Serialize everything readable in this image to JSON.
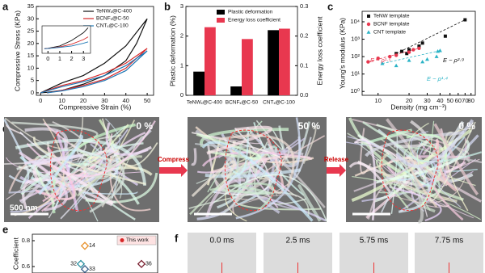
{
  "chart_data": [
    {
      "type": "line",
      "label": "a",
      "x_label": "Compressive Strain (%)",
      "y_label": "Compressive Stress (KPa)",
      "xlim": [
        -2,
        53
      ],
      "xticks": [
        0,
        10,
        20,
        30,
        40,
        50
      ],
      "ylim": [
        -1,
        35
      ],
      "yticks": [
        0,
        5,
        10,
        15,
        20,
        25,
        30,
        35
      ],
      "series": [
        {
          "name": "TeNWₓ@C-400",
          "color": "#111111",
          "x": [
            0,
            5,
            10,
            20,
            30,
            40,
            50,
            45,
            40,
            30,
            20,
            10,
            3,
            0
          ],
          "values": [
            0,
            2,
            4,
            7,
            12,
            19,
            30,
            20,
            13,
            7,
            3.5,
            1,
            0.2,
            0
          ]
        },
        {
          "name": "BCNFₓ@C-50",
          "color": "#d62728",
          "x": [
            0,
            10,
            20,
            30,
            40,
            50,
            40,
            30,
            20,
            10,
            3
          ],
          "values": [
            0,
            3,
            5,
            8,
            12,
            18,
            10,
            5.5,
            3,
            1,
            0
          ]
        },
        {
          "name": "CNTₓ@C-100",
          "color": "#1f77b4",
          "x": [
            0,
            10,
            20,
            30,
            40,
            50,
            40,
            30,
            20,
            10,
            3
          ],
          "values": [
            0,
            2.5,
            4.5,
            7,
            11,
            17,
            9,
            5,
            2.5,
            0.8,
            0
          ]
        }
      ],
      "inset": {
        "xlim": [
          -0.5,
          3.6
        ],
        "xticks": [
          0,
          1,
          2,
          3
        ],
        "ylim": [
          0,
          6
        ],
        "series": [
          {
            "color": "#111111",
            "x": [
              -0.3,
              0,
              1,
              2,
              3,
              3.4
            ],
            "values": [
              1,
              1.1,
              1.6,
              2.8,
              4.5,
              5.6
            ]
          },
          {
            "color": "#d62728",
            "x": [
              -0.3,
              0,
              1,
              2,
              3,
              3.4
            ],
            "values": [
              1,
              1.05,
              1.4,
              2,
              3,
              3.6
            ]
          },
          {
            "color": "#1f77b4",
            "x": [
              -0.3,
              0,
              1,
              2,
              3,
              3.4
            ],
            "values": [
              1,
              1.05,
              1.3,
              1.6,
              2.2,
              2.5
            ]
          }
        ]
      }
    },
    {
      "type": "bar",
      "label": "b",
      "y_label": "Plastic deformation (%)",
      "y2_label": "Energy loss coefficient",
      "categories": [
        "TeNWₓ@C-400",
        "BCNFₓ@C-50",
        "CNTₓ@C-100"
      ],
      "ylim": [
        0,
        3
      ],
      "yticks": [
        0,
        1,
        2,
        3
      ],
      "y2lim": [
        0,
        0.3
      ],
      "y2ticks": [
        {
          "value": 0,
          "label": "0.0"
        },
        0.1,
        0.2,
        0.3
      ],
      "series": [
        {
          "name": "Plastic deformation",
          "color": "#000000",
          "values": [
            0.8,
            0.3,
            2.2
          ]
        },
        {
          "name": "Energy loss coefficient",
          "color": "#e8384f",
          "axis": "y2",
          "values": [
            0.23,
            0.19,
            0.225
          ]
        }
      ]
    },
    {
      "type": "scatter",
      "label": "c",
      "x_label": "Density (mg cm⁻³)",
      "y_label": "Young's modulus (KPa)",
      "log_x": true,
      "log_y": true,
      "xlim": [
        7,
        88
      ],
      "xticks": [
        10,
        20,
        30,
        40,
        50,
        60,
        70,
        80
      ],
      "ylim": [
        0.6,
        40000
      ],
      "yticks": [
        {
          "value": 1,
          "label": "10⁰"
        },
        {
          "value": 10,
          "label": "10¹"
        },
        {
          "value": 100,
          "label": "10²"
        },
        {
          "value": 1000,
          "label": "10³"
        },
        {
          "value": 10000,
          "label": "10⁴"
        }
      ],
      "series": [
        {
          "name": "TeNW template",
          "color": "#111111",
          "marker": "square",
          "x": [
            15,
            17,
            19,
            20,
            25,
            27,
            45,
            70
          ],
          "values": [
            150,
            200,
            150,
            250,
            400,
            600,
            1500,
            13000
          ]
        },
        {
          "name": "BCNF template",
          "color": "#e8384f",
          "marker": "circle",
          "x": [
            8,
            10,
            13,
            15,
            20,
            22,
            25
          ],
          "values": [
            50,
            80,
            100,
            120,
            180,
            250,
            300
          ]
        },
        {
          "name": "CNT template",
          "color": "#2ab3c6",
          "marker": "triangle",
          "x": [
            11,
            15,
            20,
            27,
            30,
            37,
            38,
            40
          ],
          "values": [
            40,
            30,
            60,
            50,
            70,
            100,
            200,
            220
          ]
        }
      ],
      "annotations": [
        "E ~ ρ²·⁹",
        "E ~ ρ¹·⁵",
        "E ~ ρ¹·⁴"
      ]
    },
    {
      "type": "scatter",
      "label": "e",
      "y_label": "Coefficient",
      "ylim": [
        0.55,
        0.85
      ],
      "yticks": [
        0.6,
        0.8
      ],
      "point_labels": [
        "14",
        "32",
        "33",
        "36"
      ],
      "values": [
        0.76,
        0.62,
        0.58,
        0.62
      ],
      "colors": [
        "#e8902a",
        "#2a8fa0",
        "#3a5f8a",
        "#7a2030"
      ],
      "legend": "This work",
      "legend_color": "#d62728"
    }
  ],
  "figure": {
    "d": {
      "label": "d",
      "strains": [
        "0 %",
        "50 %",
        "0 %"
      ],
      "arrows": [
        "Compress",
        "Release"
      ],
      "scale_bar": "500 nm"
    },
    "f": {
      "label": "f",
      "frames": [
        "0.0 ms",
        "2.5 ms",
        "5.75 ms",
        "7.75 ms"
      ]
    }
  }
}
